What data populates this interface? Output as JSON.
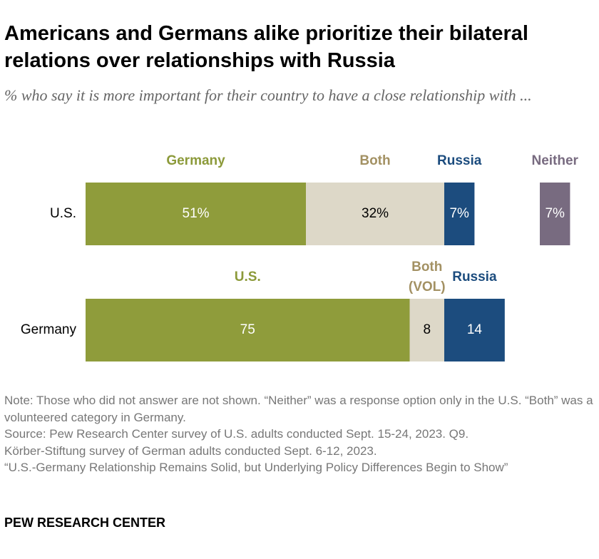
{
  "chart_data": {
    "type": "stacked-bar",
    "title": "Americans and Germans alike prioritize their bilateral relations over relationships with Russia",
    "subtitle": "% who say it is more important for their country to have a close relationship with ...",
    "rows": [
      {
        "label": "U.S.",
        "names": [
          "Germany",
          "Both",
          "Russia",
          "Neither"
        ],
        "colors": [
          "#8f9c3b",
          "#ddd8c8",
          "#1c4c7e",
          "#786b80"
        ],
        "name_colors": [
          "#8c9a3a",
          "#a39163",
          "#1c4c7e",
          "#786b80"
        ],
        "values": [
          51,
          32,
          7,
          7
        ],
        "value_labels": [
          "51%",
          "32%",
          "7%",
          "7%"
        ],
        "detached_last": true
      },
      {
        "label": "Germany",
        "names": [
          "U.S.",
          "Both (VOL)",
          "Russia"
        ],
        "colors": [
          "#8f9c3b",
          "#ddd8c8",
          "#1c4c7e"
        ],
        "name_colors": [
          "#8c9a3a",
          "#a39163",
          "#1c4c7e"
        ],
        "values": [
          75,
          8,
          14
        ],
        "detached_last": false
      }
    ],
    "notes": [
      "Note: Those who did not answer are not shown. “Neither” was a response option only in the U.S. “Both” was a volunteered category in Germany.",
      "Source: Pew Research Center survey of U.S. adults conducted Sept. 15-24, 2023. Q9.",
      "Körber-Stiftung survey of German adults conducted Sept. 6-12, 2023.",
      "“U.S.-Germany Relationship Remains Solid, but Underlying Policy Differences Begin to Show”"
    ],
    "credit": "PEW RESEARCH CENTER"
  }
}
